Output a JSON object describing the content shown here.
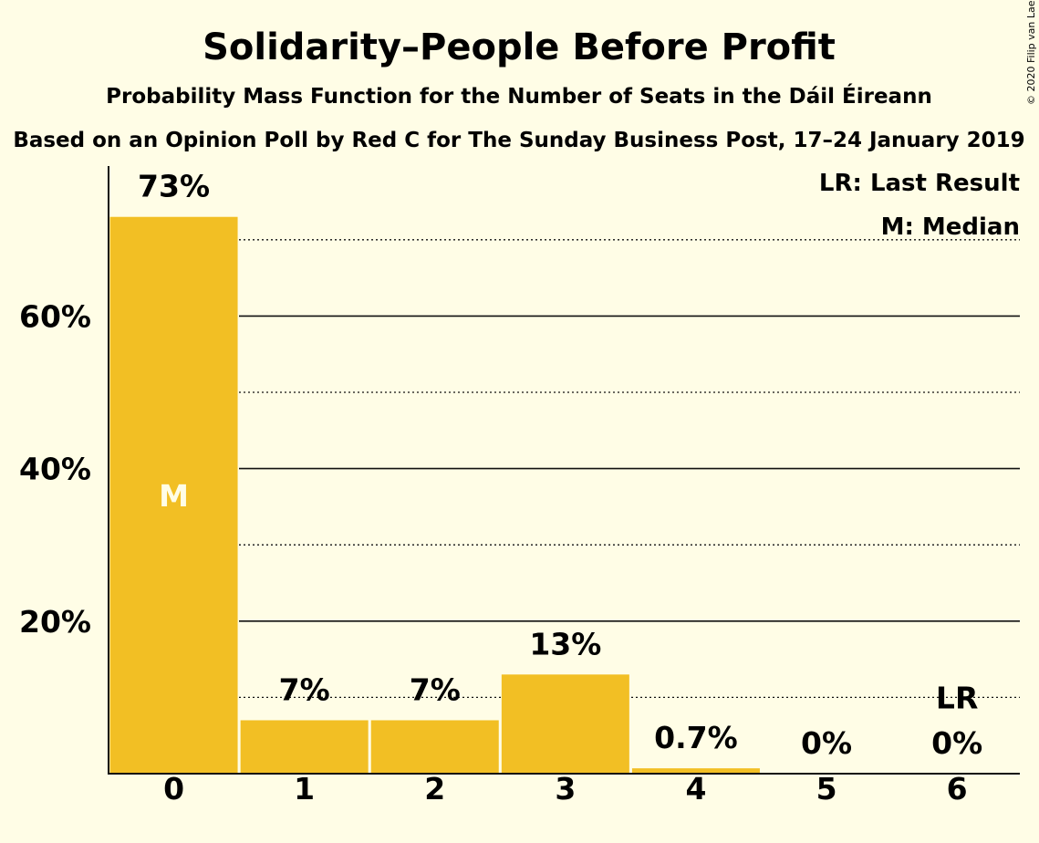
{
  "chart_data": {
    "type": "bar",
    "title": "Solidarity–People Before Profit",
    "subtitle": "Probability Mass Function for the Number of Seats in the Dáil Éireann",
    "subtitle2": "Based on an Opinion Poll by Red C for The Sunday Business Post, 17–24 January 2019",
    "copyright": "© 2020 Filip van Laenen",
    "categories": [
      "0",
      "1",
      "2",
      "3",
      "4",
      "5",
      "6"
    ],
    "values": [
      73,
      7,
      7,
      13,
      0.7,
      0,
      0
    ],
    "value_labels": [
      "73%",
      "7%",
      "7%",
      "13%",
      "0.7%",
      "0%",
      "0%"
    ],
    "ylim": [
      0,
      80
    ],
    "yticks": [
      20,
      40,
      60
    ],
    "ytick_labels": [
      "20%",
      "40%",
      "60%"
    ],
    "median_index": 0,
    "median_marker": "M",
    "last_result_index": 6,
    "last_result_marker": "LR",
    "legend": [
      "LR: Last Result",
      "M: Median"
    ],
    "legend_position": "top-right",
    "grid": true,
    "bar_color": "#f2bf24",
    "background_color": "#fffde6"
  }
}
